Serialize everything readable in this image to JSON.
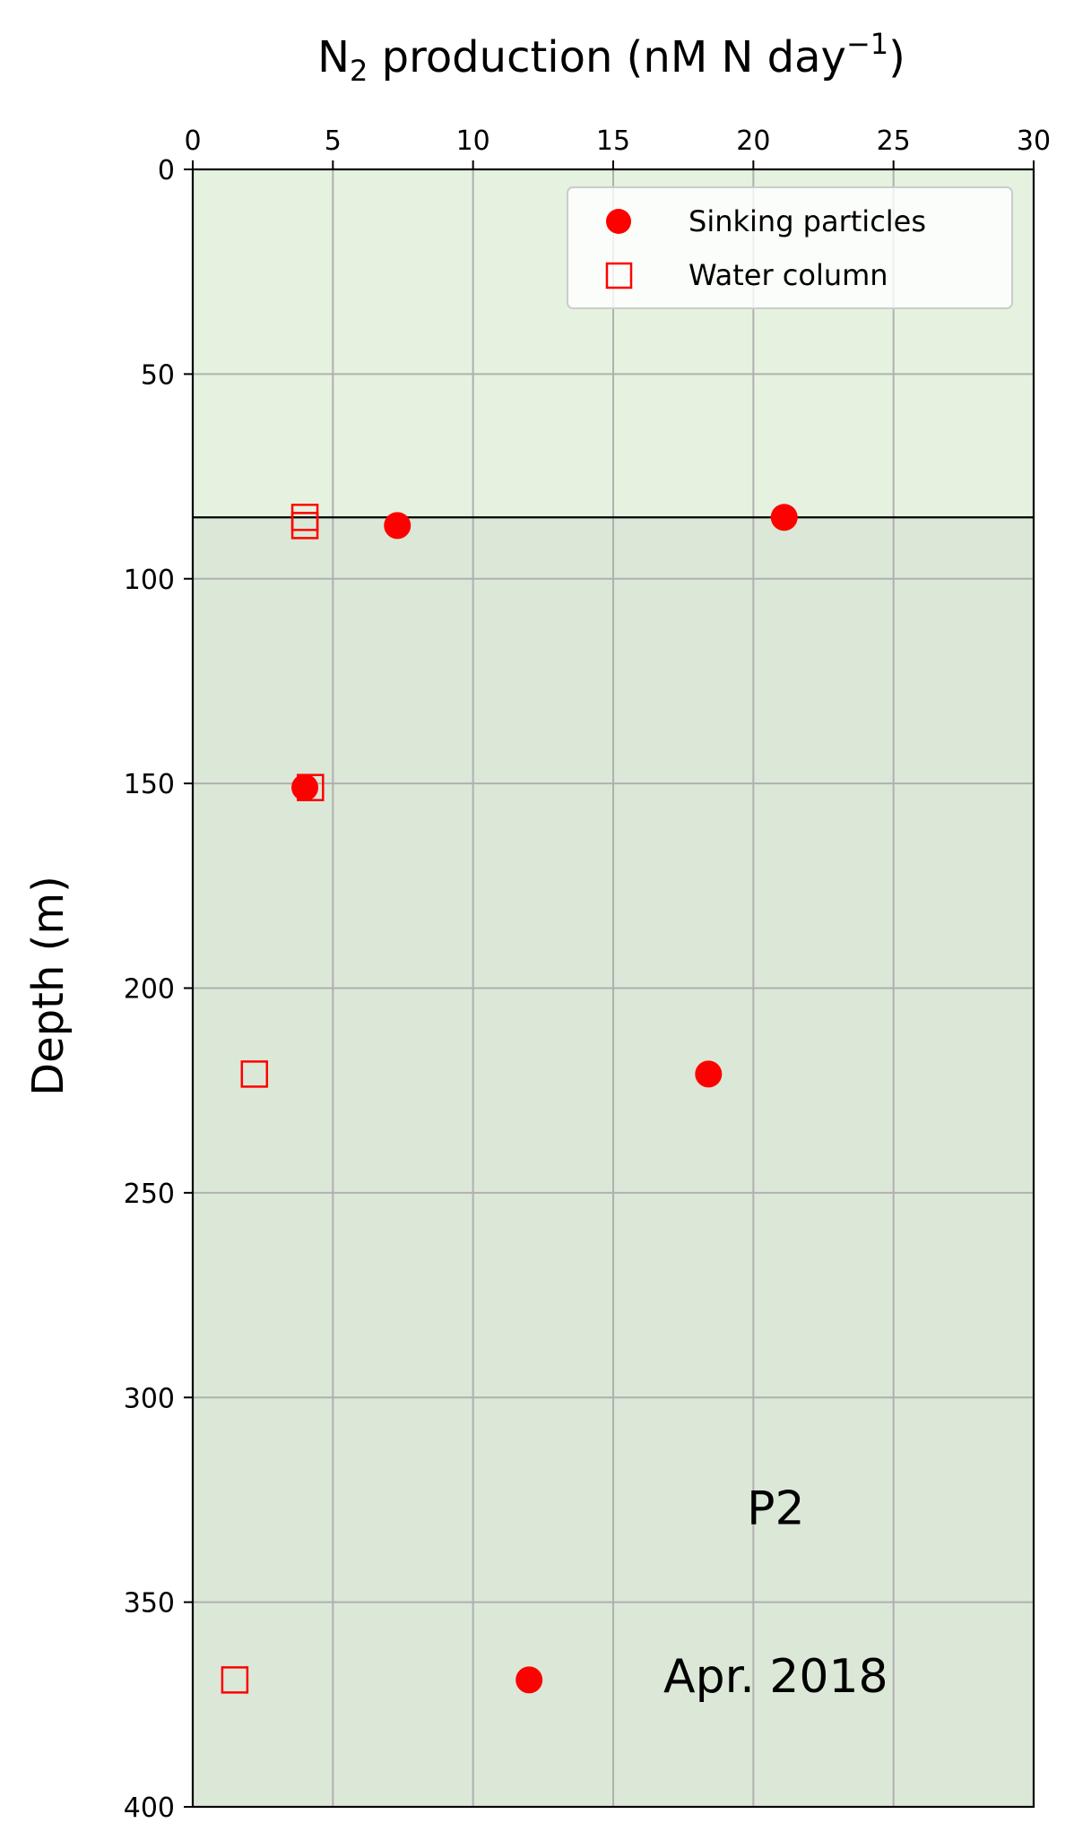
{
  "chart_data": {
    "type": "scatter",
    "xlabel_main": "N",
    "xlabel_sub": "2",
    "xlabel_rest": " production (nM N day",
    "xlabel_sup": "−1",
    "xlabel_close": ")",
    "ylabel": "Depth (m)",
    "xlim": [
      0,
      30
    ],
    "ylim": [
      0,
      400
    ],
    "y_inverted": true,
    "x_axis_position": "top",
    "x_ticks": [
      "0",
      "5",
      "10",
      "15",
      "20",
      "25",
      "30"
    ],
    "y_ticks": [
      "0",
      "50",
      "100",
      "150",
      "200",
      "250",
      "300",
      "350",
      "400"
    ],
    "grid": true,
    "legend_position": "top-right",
    "horizontal_line_depth": 85,
    "shaded_regions": [
      {
        "from": 0,
        "to": 85,
        "color": "#e5f2df"
      },
      {
        "from": 85,
        "to": 400,
        "color": "#dbe8d7"
      }
    ],
    "series": [
      {
        "name": "Sinking particles",
        "marker": "circle",
        "color": "#ff0000",
        "points": [
          {
            "x": 21.1,
            "y": 85
          },
          {
            "x": 7.3,
            "y": 87
          },
          {
            "x": 4.0,
            "y": 151
          },
          {
            "x": 18.4,
            "y": 221
          },
          {
            "x": 12.0,
            "y": 369
          }
        ]
      },
      {
        "name": "Water column",
        "marker": "square-open",
        "color": "#ff0000",
        "points": [
          {
            "x": 4.0,
            "y": 85
          },
          {
            "x": 4.0,
            "y": 87
          },
          {
            "x": 4.2,
            "y": 151
          },
          {
            "x": 2.2,
            "y": 221
          },
          {
            "x": 1.5,
            "y": 369
          }
        ]
      }
    ],
    "annotations": [
      {
        "text": "P2",
        "x": 20.8,
        "y": 327
      },
      {
        "text": "Apr. 2018",
        "x": 20.8,
        "y": 368
      }
    ]
  }
}
